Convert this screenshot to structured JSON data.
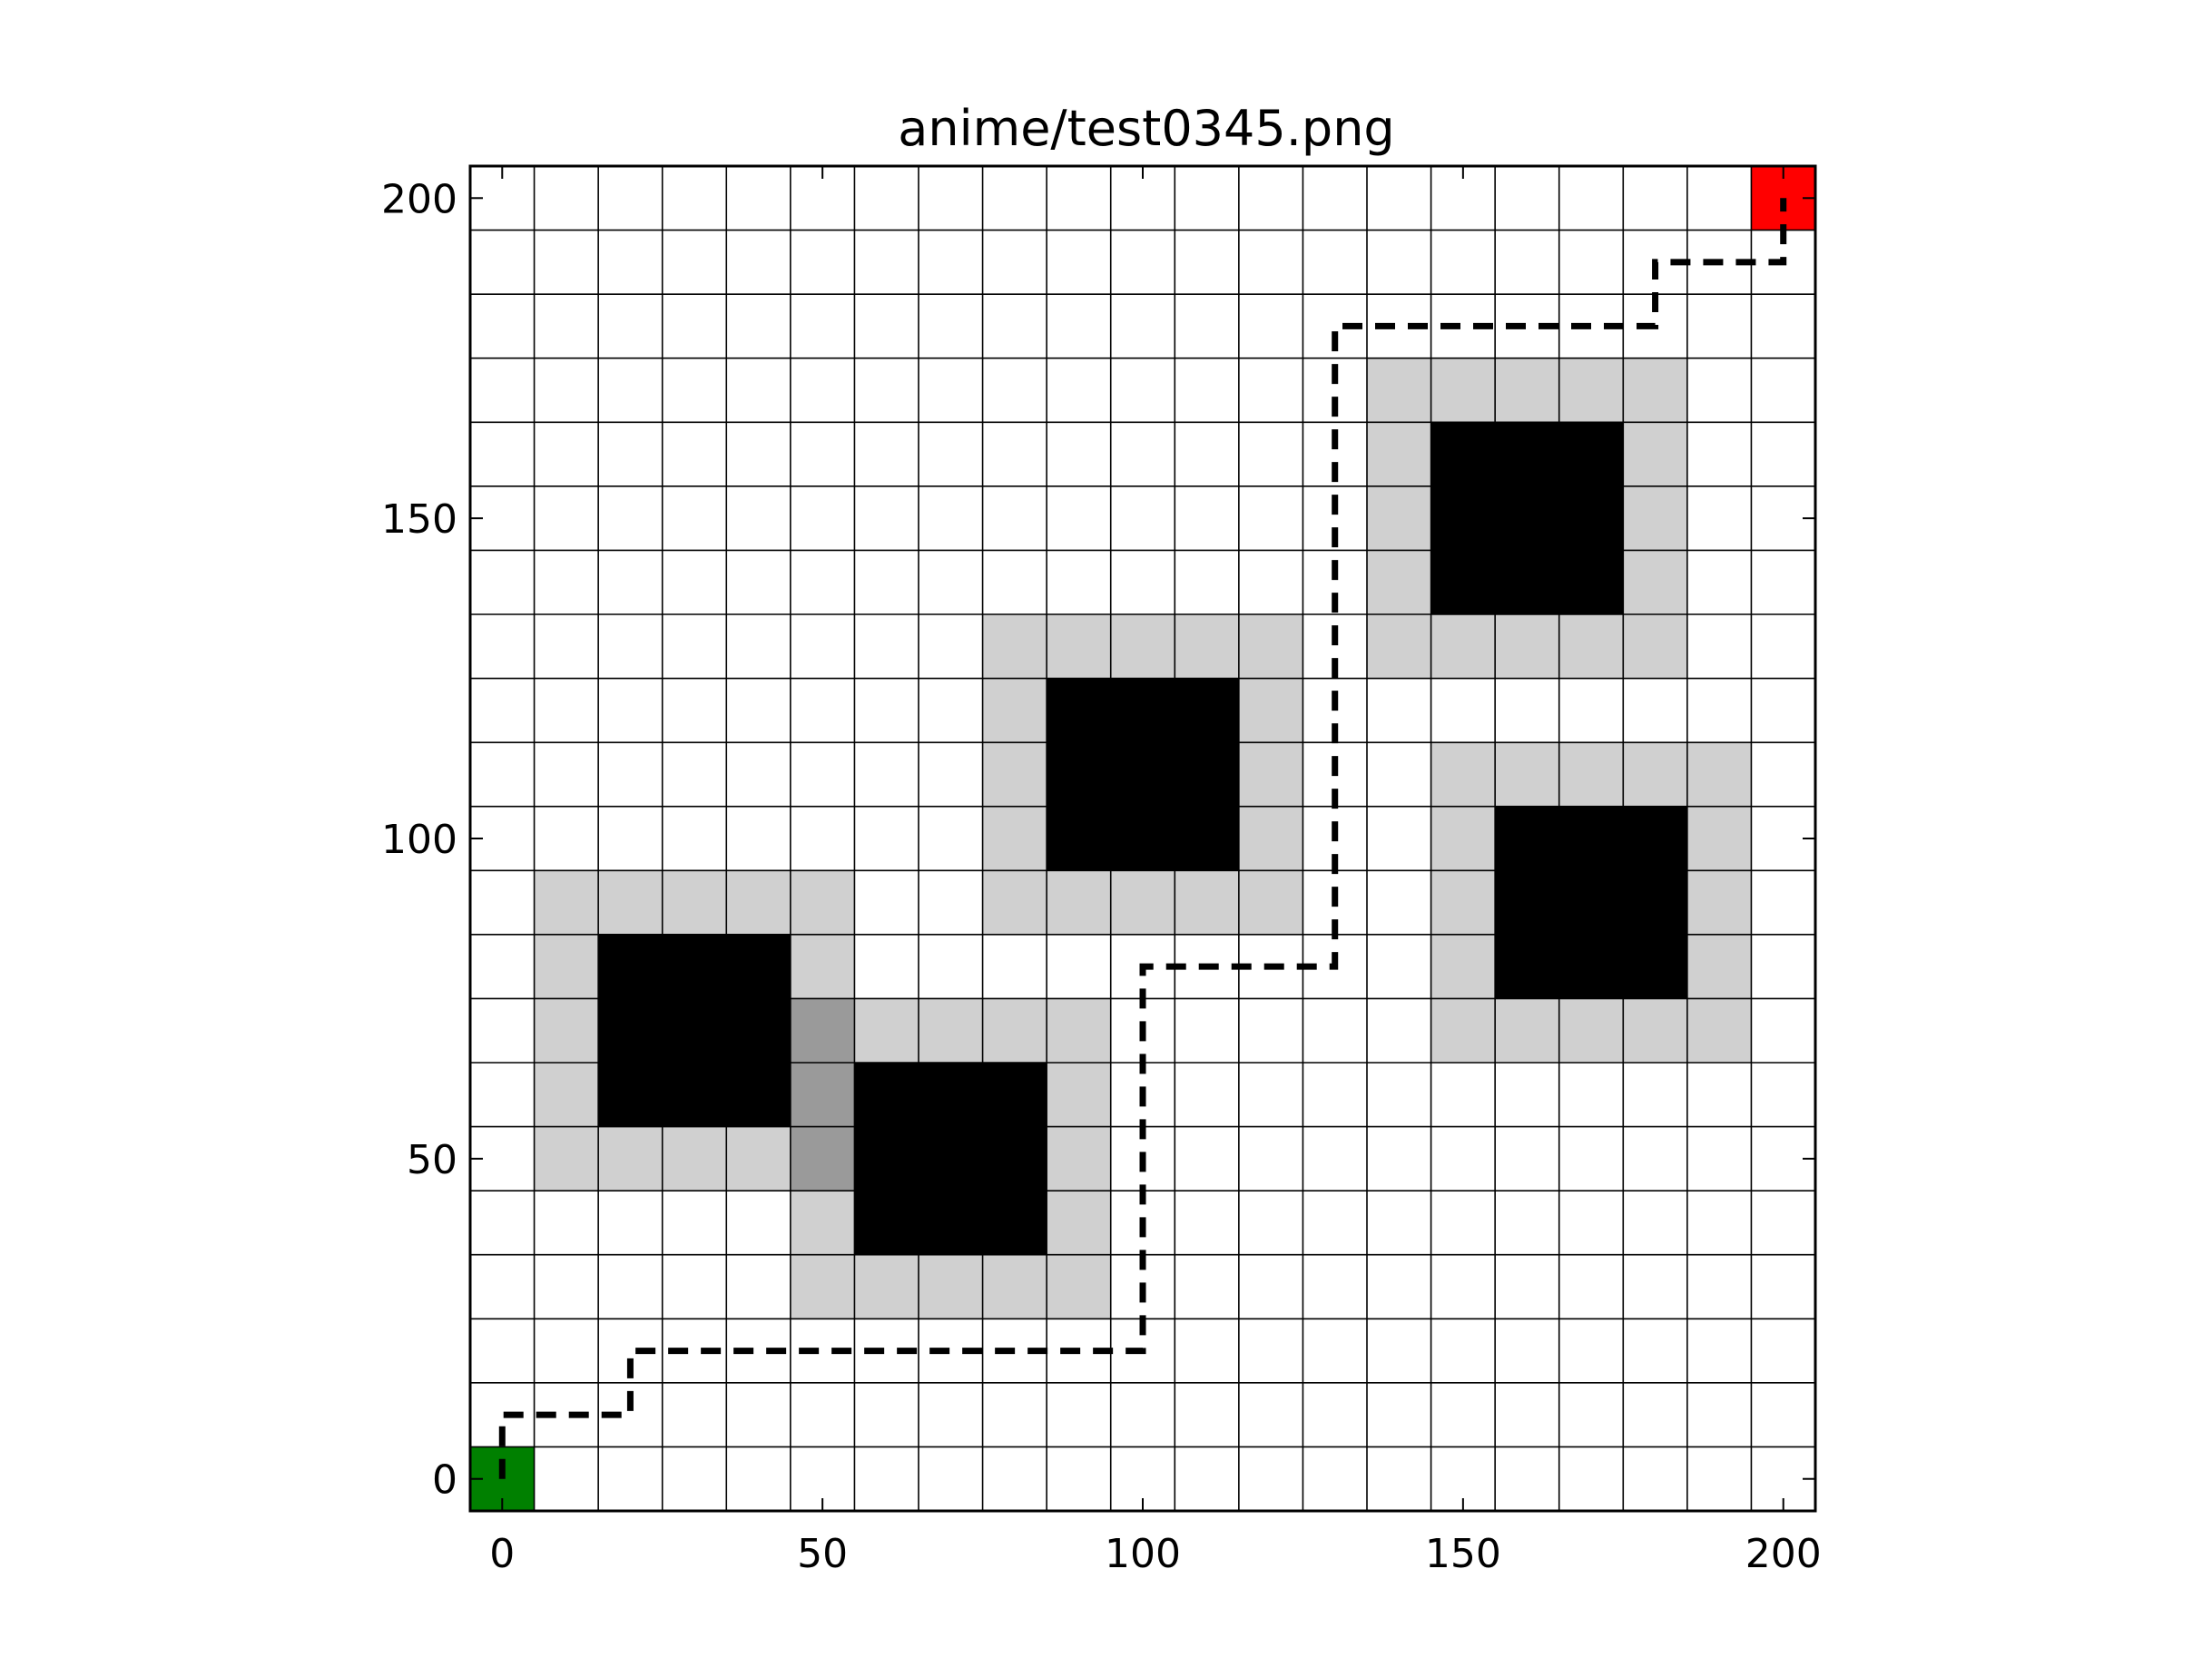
{
  "chart_data": {
    "type": "heatmap",
    "title": "anime/test0345.png",
    "xlabel": "",
    "ylabel": "",
    "xlim": [
      -5,
      205
    ],
    "ylim": [
      -5,
      205
    ],
    "cell_size": 10,
    "x_ticks": [
      0,
      50,
      100,
      150,
      200
    ],
    "y_ticks": [
      0,
      50,
      100,
      150,
      200
    ],
    "x_tick_labels": [
      "0",
      "50",
      "100",
      "150",
      "200"
    ],
    "y_tick_labels": [
      "0",
      "50",
      "100",
      "150",
      "200"
    ],
    "grid": true,
    "colors": {
      "free": "#ffffff",
      "obstacle": "#000000",
      "margin": "#d0d0d0",
      "overlap": "#9a9a9a",
      "start": "#008000",
      "goal": "#ff0000",
      "grid": "#000000",
      "path": "#000000"
    },
    "obstacles": [
      {
        "x": [
          15,
          45
        ],
        "y": [
          55,
          85
        ]
      },
      {
        "x": [
          55,
          85
        ],
        "y": [
          35,
          65
        ]
      },
      {
        "x": [
          85,
          115
        ],
        "y": [
          95,
          125
        ]
      },
      {
        "x": [
          145,
          175
        ],
        "y": [
          135,
          165
        ]
      },
      {
        "x": [
          155,
          185
        ],
        "y": [
          75,
          105
        ]
      }
    ],
    "margins": [
      {
        "x": [
          5,
          55
        ],
        "y": [
          45,
          95
        ]
      },
      {
        "x": [
          45,
          95
        ],
        "y": [
          25,
          75
        ]
      },
      {
        "x": [
          75,
          125
        ],
        "y": [
          85,
          135
        ]
      },
      {
        "x": [
          135,
          185
        ],
        "y": [
          125,
          175
        ]
      },
      {
        "x": [
          145,
          195
        ],
        "y": [
          65,
          115
        ]
      }
    ],
    "start": {
      "x": [
        -5,
        5
      ],
      "y": [
        -5,
        5
      ]
    },
    "goal": {
      "x": [
        195,
        205
      ],
      "y": [
        195,
        205
      ]
    },
    "path": {
      "x": [
        0,
        0,
        20,
        20,
        100,
        100,
        130,
        130,
        180,
        180,
        200,
        200
      ],
      "y": [
        0,
        10,
        10,
        20,
        20,
        80,
        80,
        180,
        180,
        190,
        190,
        200
      ]
    }
  }
}
